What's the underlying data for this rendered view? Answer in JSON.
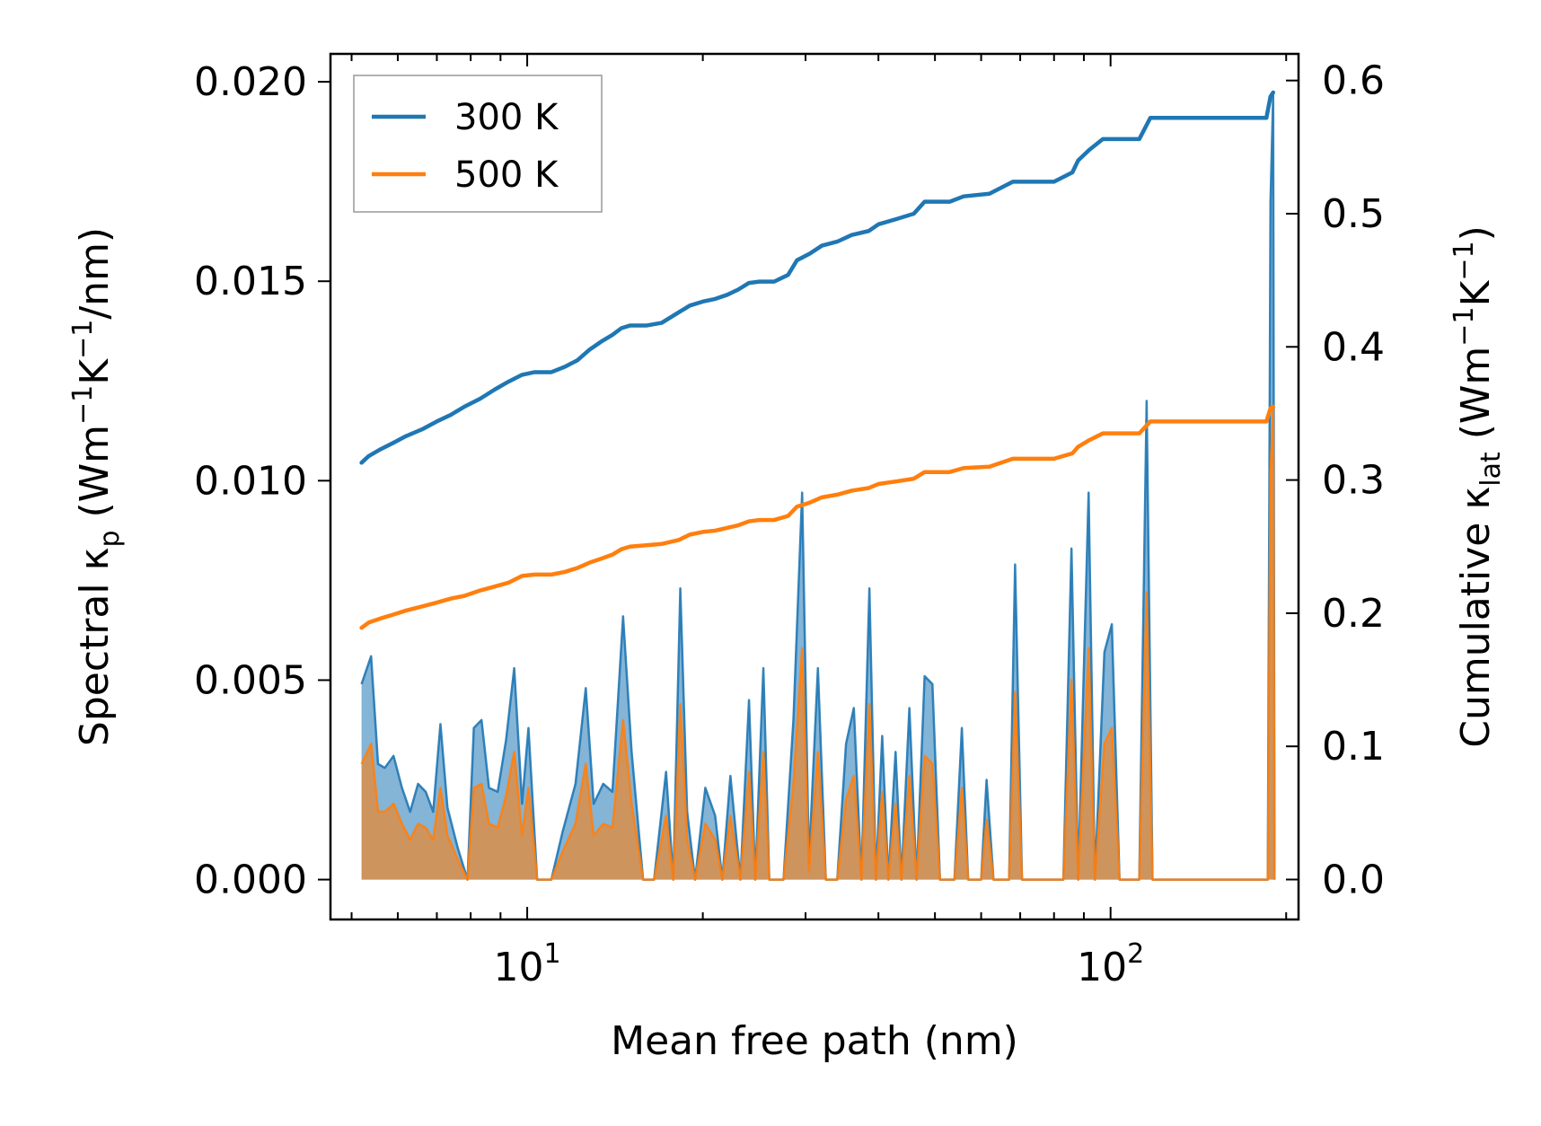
{
  "chart_data": {
    "type": "line",
    "xlabel": "Mean free path (nm)",
    "x_scale": "log",
    "xlim": [
      4.6,
      210
    ],
    "x_ticks": [
      {
        "value": 10,
        "base": "10",
        "exp": "1"
      },
      {
        "value": 100,
        "base": "10",
        "exp": "2"
      }
    ],
    "y_left": {
      "label_parts": [
        "Spectral κ",
        "p",
        " (Wm",
        "−1",
        "K",
        "−1",
        "/nm)"
      ],
      "ylim": [
        -0.001,
        0.0207
      ],
      "ticks": [
        0.0,
        0.005,
        0.01,
        0.015,
        0.02
      ],
      "tick_labels": [
        "0.000",
        "0.005",
        "0.010",
        "0.015",
        "0.020"
      ]
    },
    "y_right": {
      "label_parts": [
        "Cumulative κ",
        "lat",
        " (Wm",
        "−1",
        "K",
        "−1",
        ")"
      ],
      "ylim": [
        -0.03,
        0.62
      ],
      "ticks": [
        0.0,
        0.1,
        0.2,
        0.3,
        0.4,
        0.5,
        0.6
      ],
      "tick_labels": [
        "0.0",
        "0.1",
        "0.2",
        "0.3",
        "0.4",
        "0.5",
        "0.6"
      ]
    },
    "legend": {
      "position": "top-left"
    },
    "series": [
      {
        "name": "300 K",
        "color": "#1f77b4",
        "fill_opacity": 0.55,
        "cumulative": [
          [
            5.2,
            0.313
          ],
          [
            5.35,
            0.318
          ],
          [
            5.6,
            0.323
          ],
          [
            5.9,
            0.328
          ],
          [
            6.2,
            0.333
          ],
          [
            6.6,
            0.338
          ],
          [
            7.0,
            0.344
          ],
          [
            7.4,
            0.349
          ],
          [
            7.8,
            0.355
          ],
          [
            8.3,
            0.361
          ],
          [
            8.8,
            0.368
          ],
          [
            9.3,
            0.374
          ],
          [
            9.8,
            0.379
          ],
          [
            10.3,
            0.381
          ],
          [
            11.0,
            0.381
          ],
          [
            11.6,
            0.385
          ],
          [
            12.2,
            0.39
          ],
          [
            12.8,
            0.398
          ],
          [
            13.4,
            0.404
          ],
          [
            14.0,
            0.409
          ],
          [
            14.5,
            0.414
          ],
          [
            15.0,
            0.416
          ],
          [
            16.0,
            0.416
          ],
          [
            17.0,
            0.418
          ],
          [
            18.2,
            0.426
          ],
          [
            19.0,
            0.431
          ],
          [
            20.0,
            0.434
          ],
          [
            21.0,
            0.436
          ],
          [
            22.0,
            0.439
          ],
          [
            23.0,
            0.443
          ],
          [
            24.0,
            0.448
          ],
          [
            25.0,
            0.449
          ],
          [
            26.5,
            0.449
          ],
          [
            28.0,
            0.454
          ],
          [
            29.0,
            0.465
          ],
          [
            30.5,
            0.47
          ],
          [
            32.0,
            0.476
          ],
          [
            34.0,
            0.479
          ],
          [
            36.0,
            0.484
          ],
          [
            38.5,
            0.487
          ],
          [
            40.0,
            0.492
          ],
          [
            43.0,
            0.496
          ],
          [
            46.0,
            0.5
          ],
          [
            48.0,
            0.509
          ],
          [
            53.0,
            0.509
          ],
          [
            56.0,
            0.513
          ],
          [
            62.0,
            0.515
          ],
          [
            68.0,
            0.524
          ],
          [
            80.0,
            0.524
          ],
          [
            86.0,
            0.531
          ],
          [
            88.0,
            0.54
          ],
          [
            92.0,
            0.548
          ],
          [
            97.0,
            0.556
          ],
          [
            112.0,
            0.556
          ],
          [
            117.0,
            0.572
          ],
          [
            185.0,
            0.572
          ],
          [
            188.0,
            0.588
          ],
          [
            190.0,
            0.591
          ]
        ],
        "spectral": [
          [
            5.2,
            0.0049
          ],
          [
            5.4,
            0.0056
          ],
          [
            5.55,
            0.0029
          ],
          [
            5.7,
            0.0028
          ],
          [
            5.9,
            0.0031
          ],
          [
            6.1,
            0.0023
          ],
          [
            6.3,
            0.0017
          ],
          [
            6.5,
            0.0024
          ],
          [
            6.7,
            0.0022
          ],
          [
            6.9,
            0.0017
          ],
          [
            7.1,
            0.0039
          ],
          [
            7.3,
            0.0018
          ],
          [
            7.6,
            0.0008
          ],
          [
            7.9,
            0.0
          ],
          [
            8.1,
            0.0038
          ],
          [
            8.35,
            0.004
          ],
          [
            8.6,
            0.0023
          ],
          [
            8.9,
            0.0022
          ],
          [
            9.2,
            0.0035
          ],
          [
            9.5,
            0.0053
          ],
          [
            9.8,
            0.0019
          ],
          [
            10.05,
            0.0038
          ],
          [
            10.4,
            0.0
          ],
          [
            11.0,
            0.0
          ],
          [
            11.5,
            0.0012
          ],
          [
            12.1,
            0.0024
          ],
          [
            12.6,
            0.0048
          ],
          [
            13.0,
            0.0019
          ],
          [
            13.5,
            0.0024
          ],
          [
            14.0,
            0.0022
          ],
          [
            14.6,
            0.0066
          ],
          [
            15.1,
            0.0032
          ],
          [
            15.8,
            0.0
          ],
          [
            16.5,
            0.0
          ],
          [
            17.3,
            0.0027
          ],
          [
            17.8,
            0.0
          ],
          [
            18.3,
            0.0073
          ],
          [
            18.8,
            0.0017
          ],
          [
            19.4,
            0.0
          ],
          [
            20.2,
            0.0023
          ],
          [
            21.0,
            0.0016
          ],
          [
            21.6,
            0.0
          ],
          [
            22.3,
            0.0026
          ],
          [
            23.2,
            0.0
          ],
          [
            24.0,
            0.0045
          ],
          [
            24.6,
            0.0
          ],
          [
            25.4,
            0.0053
          ],
          [
            26.0,
            0.0
          ],
          [
            27.5,
            0.0
          ],
          [
            28.6,
            0.004
          ],
          [
            29.6,
            0.0097
          ],
          [
            30.4,
            0.0004
          ],
          [
            31.5,
            0.0053
          ],
          [
            32.5,
            0.0
          ],
          [
            34.0,
            0.0
          ],
          [
            35.2,
            0.0034
          ],
          [
            36.3,
            0.0043
          ],
          [
            37.4,
            0.0
          ],
          [
            38.6,
            0.0073
          ],
          [
            39.6,
            0.0
          ],
          [
            40.6,
            0.0036
          ],
          [
            41.6,
            0.0
          ],
          [
            42.8,
            0.0032
          ],
          [
            43.8,
            0.0
          ],
          [
            45.2,
            0.0043
          ],
          [
            46.5,
            0.0
          ],
          [
            48.0,
            0.0051
          ],
          [
            49.5,
            0.0049
          ],
          [
            51.0,
            0.0
          ],
          [
            54.0,
            0.0
          ],
          [
            55.6,
            0.0038
          ],
          [
            57.0,
            0.0
          ],
          [
            60.0,
            0.0
          ],
          [
            61.3,
            0.0025
          ],
          [
            63.0,
            0.0
          ],
          [
            67.0,
            0.0
          ],
          [
            68.6,
            0.0079
          ],
          [
            70.5,
            0.0
          ],
          [
            83.0,
            0.0
          ],
          [
            85.7,
            0.0083
          ],
          [
            88.0,
            0.0
          ],
          [
            91.7,
            0.0097
          ],
          [
            94.0,
            0.0
          ],
          [
            97.6,
            0.0057
          ],
          [
            100.5,
            0.0064
          ],
          [
            103.6,
            0.0
          ],
          [
            112.0,
            0.0
          ],
          [
            115.3,
            0.012
          ],
          [
            118.0,
            0.0
          ],
          [
            186.0,
            0.0
          ],
          [
            188.0,
            0.017
          ],
          [
            190.0,
            0.0197
          ],
          [
            191.0,
            0.0
          ]
        ]
      },
      {
        "name": "500 K",
        "color": "#ff7f0e",
        "fill_opacity": 0.6,
        "cumulative": [
          [
            5.2,
            0.189
          ],
          [
            5.35,
            0.193
          ],
          [
            5.6,
            0.196
          ],
          [
            5.9,
            0.199
          ],
          [
            6.2,
            0.202
          ],
          [
            6.6,
            0.205
          ],
          [
            7.0,
            0.208
          ],
          [
            7.4,
            0.211
          ],
          [
            7.8,
            0.213
          ],
          [
            8.3,
            0.217
          ],
          [
            8.8,
            0.22
          ],
          [
            9.3,
            0.223
          ],
          [
            9.8,
            0.228
          ],
          [
            10.3,
            0.229
          ],
          [
            11.0,
            0.229
          ],
          [
            11.6,
            0.231
          ],
          [
            12.2,
            0.234
          ],
          [
            12.8,
            0.238
          ],
          [
            13.4,
            0.241
          ],
          [
            14.0,
            0.244
          ],
          [
            14.5,
            0.248
          ],
          [
            15.0,
            0.25
          ],
          [
            16.0,
            0.251
          ],
          [
            17.0,
            0.252
          ],
          [
            18.2,
            0.255
          ],
          [
            19.0,
            0.259
          ],
          [
            20.0,
            0.261
          ],
          [
            21.0,
            0.262
          ],
          [
            22.0,
            0.264
          ],
          [
            23.0,
            0.266
          ],
          [
            24.0,
            0.269
          ],
          [
            25.0,
            0.27
          ],
          [
            26.5,
            0.27
          ],
          [
            28.0,
            0.273
          ],
          [
            29.0,
            0.28
          ],
          [
            30.5,
            0.283
          ],
          [
            32.0,
            0.287
          ],
          [
            34.0,
            0.289
          ],
          [
            36.0,
            0.292
          ],
          [
            38.5,
            0.294
          ],
          [
            40.0,
            0.297
          ],
          [
            43.0,
            0.299
          ],
          [
            46.0,
            0.301
          ],
          [
            48.0,
            0.306
          ],
          [
            53.0,
            0.306
          ],
          [
            56.0,
            0.309
          ],
          [
            62.0,
            0.31
          ],
          [
            68.0,
            0.316
          ],
          [
            80.0,
            0.316
          ],
          [
            86.0,
            0.32
          ],
          [
            88.0,
            0.325
          ],
          [
            92.0,
            0.33
          ],
          [
            97.0,
            0.335
          ],
          [
            112.0,
            0.335
          ],
          [
            117.0,
            0.344
          ],
          [
            185.0,
            0.344
          ],
          [
            188.0,
            0.354
          ],
          [
            190.0,
            0.355
          ]
        ],
        "spectral": [
          [
            5.2,
            0.0029
          ],
          [
            5.4,
            0.0034
          ],
          [
            5.55,
            0.0017
          ],
          [
            5.7,
            0.0017
          ],
          [
            5.9,
            0.0019
          ],
          [
            6.1,
            0.0014
          ],
          [
            6.3,
            0.001
          ],
          [
            6.5,
            0.0014
          ],
          [
            6.7,
            0.0013
          ],
          [
            6.9,
            0.001
          ],
          [
            7.1,
            0.0023
          ],
          [
            7.3,
            0.0011
          ],
          [
            7.6,
            0.0005
          ],
          [
            7.9,
            0.0
          ],
          [
            8.1,
            0.0023
          ],
          [
            8.35,
            0.0024
          ],
          [
            8.6,
            0.0014
          ],
          [
            8.9,
            0.0013
          ],
          [
            9.2,
            0.0021
          ],
          [
            9.5,
            0.0032
          ],
          [
            9.8,
            0.0011
          ],
          [
            10.05,
            0.0023
          ],
          [
            10.4,
            0.0
          ],
          [
            11.0,
            0.0
          ],
          [
            11.5,
            0.0007
          ],
          [
            12.1,
            0.0014
          ],
          [
            12.6,
            0.0029
          ],
          [
            13.0,
            0.0011
          ],
          [
            13.5,
            0.0014
          ],
          [
            14.0,
            0.0013
          ],
          [
            14.6,
            0.004
          ],
          [
            15.1,
            0.0019
          ],
          [
            15.8,
            0.0
          ],
          [
            16.5,
            0.0
          ],
          [
            17.3,
            0.0016
          ],
          [
            17.8,
            0.0
          ],
          [
            18.3,
            0.0044
          ],
          [
            18.8,
            0.001
          ],
          [
            19.4,
            0.0
          ],
          [
            20.2,
            0.0014
          ],
          [
            21.0,
            0.001
          ],
          [
            21.6,
            0.0
          ],
          [
            22.3,
            0.0016
          ],
          [
            23.2,
            0.0
          ],
          [
            24.0,
            0.0027
          ],
          [
            24.6,
            0.0
          ],
          [
            25.4,
            0.0032
          ],
          [
            26.0,
            0.0
          ],
          [
            27.5,
            0.0
          ],
          [
            28.6,
            0.0024
          ],
          [
            29.6,
            0.0058
          ],
          [
            30.4,
            0.0002
          ],
          [
            31.5,
            0.0032
          ],
          [
            32.5,
            0.0
          ],
          [
            34.0,
            0.0
          ],
          [
            35.2,
            0.002
          ],
          [
            36.3,
            0.0026
          ],
          [
            37.4,
            0.0
          ],
          [
            38.6,
            0.0044
          ],
          [
            39.6,
            0.0
          ],
          [
            40.6,
            0.0022
          ],
          [
            41.6,
            0.0
          ],
          [
            42.8,
            0.0019
          ],
          [
            43.8,
            0.0
          ],
          [
            45.2,
            0.0026
          ],
          [
            46.5,
            0.0
          ],
          [
            48.0,
            0.0031
          ],
          [
            49.5,
            0.0029
          ],
          [
            51.0,
            0.0
          ],
          [
            54.0,
            0.0
          ],
          [
            55.6,
            0.0023
          ],
          [
            57.0,
            0.0
          ],
          [
            60.0,
            0.0
          ],
          [
            61.3,
            0.0015
          ],
          [
            63.0,
            0.0
          ],
          [
            67.0,
            0.0
          ],
          [
            68.6,
            0.0047
          ],
          [
            70.5,
            0.0
          ],
          [
            83.0,
            0.0
          ],
          [
            85.7,
            0.005
          ],
          [
            88.0,
            0.0
          ],
          [
            91.7,
            0.0058
          ],
          [
            94.0,
            0.0
          ],
          [
            97.6,
            0.0034
          ],
          [
            100.5,
            0.0038
          ],
          [
            103.6,
            0.0
          ],
          [
            112.0,
            0.0
          ],
          [
            115.3,
            0.0072
          ],
          [
            118.0,
            0.0
          ],
          [
            186.0,
            0.0
          ],
          [
            188.0,
            0.0102
          ],
          [
            190.0,
            0.0118
          ],
          [
            191.0,
            0.0
          ]
        ]
      }
    ]
  }
}
